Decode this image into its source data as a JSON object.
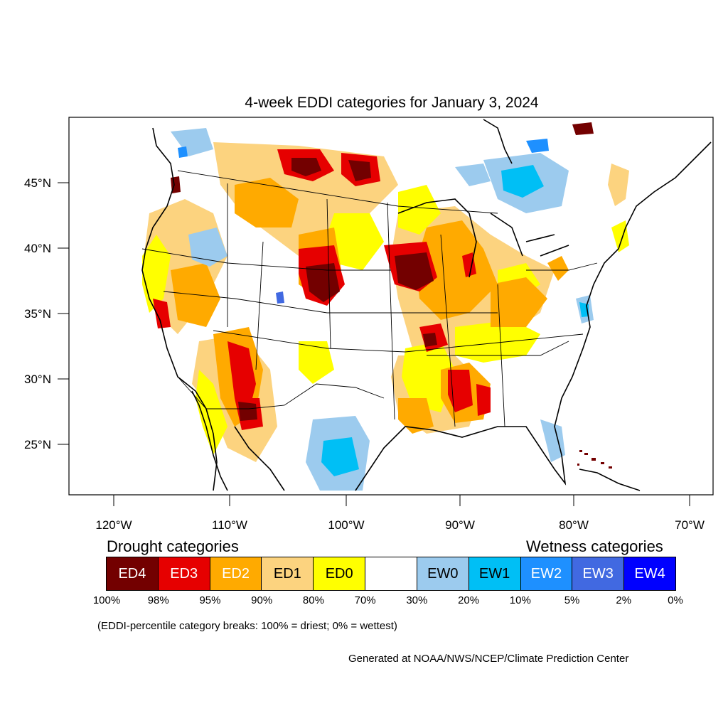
{
  "title": "4-week EDDI categories for January 3, 2024",
  "lon_labels": [
    "120°W",
    "110°W",
    "100°W",
    "90°W",
    "80°W",
    "70°W"
  ],
  "lat_labels": [
    "45°N",
    "40°N",
    "35°N",
    "30°N",
    "25°N"
  ],
  "legend": {
    "drought_heading": "Drought categories",
    "wetness_heading": "Wetness categories",
    "categories": [
      {
        "label": "ED4",
        "color": "#730000",
        "text_color": "#ffffff"
      },
      {
        "label": "ED3",
        "color": "#e60000",
        "text_color": "#ffffff"
      },
      {
        "label": "ED2",
        "color": "#ffaa00",
        "text_color": "#ffffff"
      },
      {
        "label": "ED1",
        "color": "#fcd37f",
        "text_color": "#000000"
      },
      {
        "label": "ED0",
        "color": "#ffff00",
        "text_color": "#000000"
      },
      {
        "label": "",
        "color": "#ffffff",
        "text_color": "#000000"
      },
      {
        "label": "EW0",
        "color": "#9ccbee",
        "text_color": "#000000"
      },
      {
        "label": "EW1",
        "color": "#00bff5",
        "text_color": "#000000"
      },
      {
        "label": "EW2",
        "color": "#1e90ff",
        "text_color": "#ffffff"
      },
      {
        "label": "EW3",
        "color": "#4169e1",
        "text_color": "#ffffff"
      },
      {
        "label": "EW4",
        "color": "#0000ff",
        "text_color": "#ffffff"
      }
    ],
    "ticks": [
      "100%",
      "98%",
      "95%",
      "90%",
      "80%",
      "70%",
      "30%",
      "20%",
      "10%",
      "5%",
      "2%",
      "0%"
    ]
  },
  "note": "(EDDI-percentile category breaks: 100% = driest; 0% = wettest)",
  "credit": "Generated at NOAA/NWS/NCEP/Climate Prediction Center"
}
